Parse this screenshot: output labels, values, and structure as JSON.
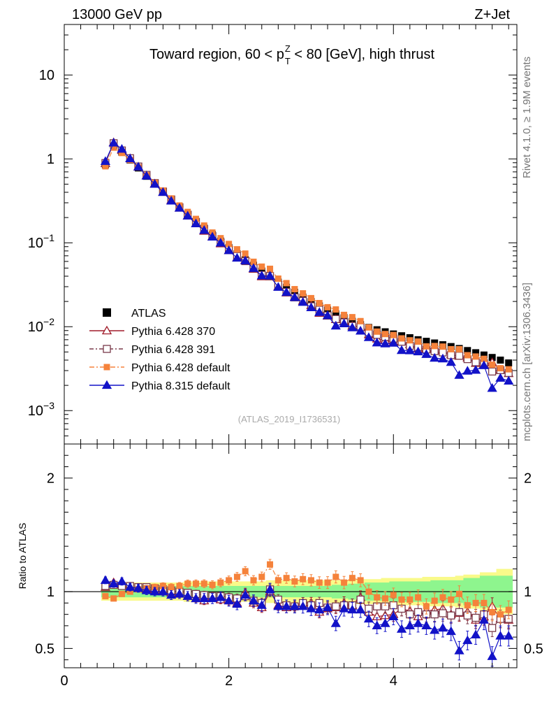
{
  "header": {
    "left": "13000 GeV pp",
    "right": "Z+Jet"
  },
  "side_text": {
    "rivet": "Rivet 4.1.0, ≥ 1.9M events",
    "mcplots": "mcplots.cern.ch [arXiv:1306.3436]"
  },
  "chart_data": {
    "type": "line",
    "title_parts": {
      "prefix": "Toward region, 60 < p",
      "sup": "Z",
      "sub": "T",
      "suffix": " < 80 [GeV], high thrust"
    },
    "analysis_label": "(ATLAS_2019_I1736531)",
    "x": {
      "range": [
        0,
        5.5
      ],
      "ticks": [
        "0",
        "2",
        "4"
      ],
      "tick_values": [
        0,
        2,
        4
      ]
    },
    "main_y": {
      "scale": "log",
      "range": [
        0.0004,
        40
      ],
      "tick_values": [
        0.001,
        0.01,
        0.1,
        1,
        10
      ],
      "tick_labels": [
        {
          "base": "10",
          "exp": "−3"
        },
        {
          "base": "10",
          "exp": "−2"
        },
        {
          "base": "10",
          "exp": "−1"
        },
        {
          "base": "1",
          "exp": ""
        },
        {
          "base": "10",
          "exp": ""
        }
      ]
    },
    "ratio_y": {
      "label": "Ratio to ATLAS",
      "range": [
        0.33,
        2.3
      ],
      "tick_values": [
        0.5,
        1,
        2
      ],
      "tick_labels": [
        "0.5",
        "1",
        "2"
      ]
    },
    "x_values": [
      0.5,
      0.6,
      0.7,
      0.8,
      0.9,
      1.0,
      1.1,
      1.2,
      1.3,
      1.4,
      1.5,
      1.6,
      1.7,
      1.8,
      1.9,
      2.0,
      2.1,
      2.2,
      2.3,
      2.4,
      2.5,
      2.6,
      2.7,
      2.8,
      2.9,
      3.0,
      3.1,
      3.2,
      3.3,
      3.4,
      3.5,
      3.6,
      3.7,
      3.8,
      3.9,
      4.0,
      4.1,
      4.2,
      4.3,
      4.4,
      4.5,
      4.6,
      4.7,
      4.8,
      4.9,
      5.0,
      5.1,
      5.2,
      5.3,
      5.4
    ],
    "reference": {
      "name": "ATLAS",
      "values": [
        0.85,
        1.45,
        1.2,
        0.97,
        0.78,
        0.62,
        0.5,
        0.4,
        0.325,
        0.265,
        0.218,
        0.18,
        0.15,
        0.125,
        0.105,
        0.088,
        0.074,
        0.063,
        0.054,
        0.046,
        0.0395,
        0.034,
        0.0295,
        0.0257,
        0.0225,
        0.0199,
        0.0177,
        0.0158,
        0.0142,
        0.0128,
        0.0116,
        0.0106,
        0.0098,
        0.0092,
        0.0087,
        0.0082,
        0.0078,
        0.0074,
        0.007,
        0.0067,
        0.0064,
        0.0061,
        0.0058,
        0.0055,
        0.0052,
        0.0049,
        0.0046,
        0.0043,
        0.004,
        0.0037
      ]
    },
    "bands": {
      "inner_color": "#8ef58e",
      "outer_color": "#f9fa8a",
      "inner_halfwidth": [
        0.05,
        0.05,
        0.05,
        0.05,
        0.05,
        0.05,
        0.05,
        0.05,
        0.05,
        0.05,
        0.05,
        0.05,
        0.05,
        0.05,
        0.05,
        0.05,
        0.05,
        0.05,
        0.05,
        0.05,
        0.05,
        0.05,
        0.05,
        0.05,
        0.05,
        0.05,
        0.05,
        0.05,
        0.06,
        0.06,
        0.07,
        0.07,
        0.08,
        0.08,
        0.08,
        0.09,
        0.09,
        0.09,
        0.09,
        0.09,
        0.1,
        0.1,
        0.1,
        0.1,
        0.12,
        0.12,
        0.14,
        0.14,
        0.14,
        0.14
      ],
      "outer_halfwidth": [
        0.08,
        0.08,
        0.08,
        0.08,
        0.08,
        0.08,
        0.08,
        0.08,
        0.08,
        0.08,
        0.09,
        0.09,
        0.09,
        0.09,
        0.09,
        0.09,
        0.09,
        0.09,
        0.09,
        0.09,
        0.1,
        0.1,
        0.1,
        0.1,
        0.1,
        0.1,
        0.1,
        0.1,
        0.1,
        0.1,
        0.11,
        0.11,
        0.11,
        0.11,
        0.12,
        0.12,
        0.12,
        0.12,
        0.12,
        0.13,
        0.13,
        0.13,
        0.13,
        0.14,
        0.15,
        0.15,
        0.17,
        0.17,
        0.2,
        0.2
      ]
    },
    "series": [
      {
        "name": "Pythia 6.428 370",
        "color": "#a01c2a",
        "marker": "triangle-open",
        "dash": "",
        "ratios": [
          1.04,
          1.08,
          1.06,
          1.04,
          1.03,
          1.02,
          1.01,
          1.0,
          0.99,
          0.98,
          0.96,
          0.94,
          0.92,
          0.95,
          0.93,
          0.92,
          0.9,
          0.99,
          0.9,
          0.86,
          1.0,
          0.88,
          0.86,
          0.88,
          0.9,
          0.9,
          0.82,
          0.85,
          0.86,
          0.9,
          0.88,
          0.95,
          0.82,
          0.78,
          0.79,
          0.8,
          0.85,
          0.83,
          0.78,
          0.83,
          0.84,
          0.85,
          0.8,
          0.81,
          0.82,
          0.75,
          0.78,
          0.87,
          0.76,
          0.75
        ]
      },
      {
        "name": "Pythia 6.428 391",
        "color": "#7a3a4a",
        "marker": "square-open",
        "dash": "6 3 2 3",
        "ratios": [
          1.05,
          1.06,
          1.05,
          1.05,
          1.04,
          1.04,
          1.03,
          1.02,
          1.01,
          1.0,
          0.99,
          0.98,
          0.97,
          0.96,
          0.96,
          0.95,
          0.94,
          0.96,
          0.92,
          0.9,
          1.02,
          0.93,
          0.88,
          0.87,
          0.9,
          0.88,
          0.9,
          0.86,
          0.87,
          0.88,
          0.88,
          0.93,
          0.85,
          0.87,
          0.87,
          0.88,
          0.85,
          0.8,
          0.82,
          0.8,
          0.8,
          0.81,
          0.79,
          0.82,
          0.79,
          0.77,
          0.8,
          0.68,
          0.76,
          0.76
        ]
      },
      {
        "name": "Pythia 6.428 default",
        "color": "#f5823b",
        "marker": "square-filled",
        "dash": "7 3 2 3",
        "ratios": [
          0.96,
          0.94,
          0.98,
          1.0,
          1.02,
          1.03,
          1.04,
          1.05,
          1.04,
          1.05,
          1.07,
          1.07,
          1.07,
          1.06,
          1.08,
          1.1,
          1.13,
          1.18,
          1.1,
          1.13,
          1.24,
          1.1,
          1.12,
          1.09,
          1.11,
          1.1,
          1.08,
          1.08,
          1.13,
          1.08,
          1.12,
          1.1,
          1.0,
          0.95,
          0.94,
          0.97,
          0.93,
          0.93,
          0.95,
          0.87,
          0.92,
          0.95,
          0.93,
          0.98,
          0.88,
          0.9,
          0.9,
          0.82,
          0.8,
          0.84
        ]
      },
      {
        "name": "Pythia 8.315 default",
        "color": "#1212c8",
        "marker": "triangle-filled",
        "dash": "",
        "ratios": [
          1.1,
          1.07,
          1.09,
          1.04,
          1.03,
          1.01,
          1.0,
          1.0,
          0.97,
          0.98,
          0.96,
          0.94,
          0.94,
          0.94,
          0.95,
          0.92,
          0.89,
          0.97,
          0.92,
          0.88,
          1.02,
          0.87,
          0.87,
          0.87,
          0.87,
          0.85,
          0.84,
          0.86,
          0.72,
          0.85,
          0.84,
          0.84,
          0.76,
          0.7,
          0.72,
          0.78,
          0.67,
          0.7,
          0.72,
          0.7,
          0.66,
          0.68,
          0.65,
          0.48,
          0.57,
          0.62,
          0.75,
          0.43,
          0.61,
          0.61
        ]
      }
    ]
  }
}
